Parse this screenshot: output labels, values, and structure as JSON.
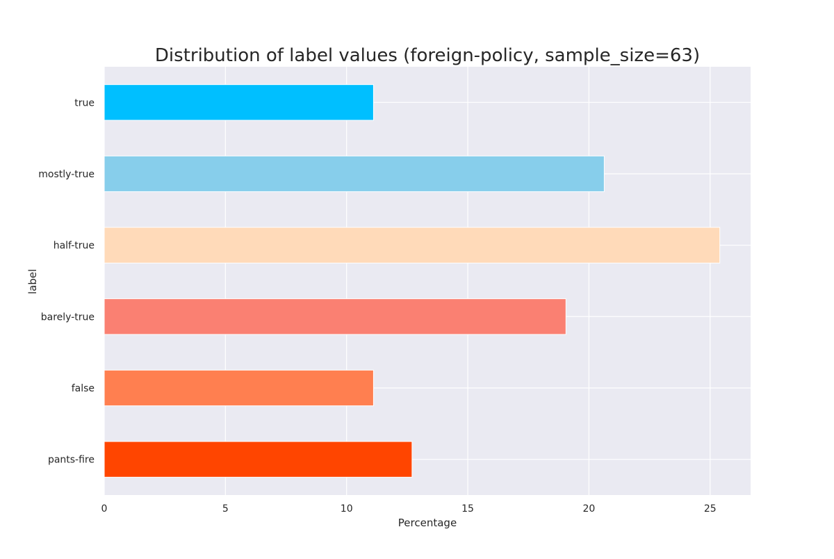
{
  "chart_data": {
    "type": "bar",
    "orientation": "horizontal",
    "title": "Distribution of label values (foreign-policy, sample_size=63)",
    "xlabel": "Percentage",
    "ylabel": "label",
    "xlim": [
      0,
      26.67
    ],
    "xticks": [
      0,
      5,
      10,
      15,
      20,
      25
    ],
    "grid": true,
    "background_color": "#EAEAF2",
    "grid_color": "#FFFFFF",
    "categories": [
      "true",
      "mostly-true",
      "half-true",
      "barely-true",
      "false",
      "pants-fire"
    ],
    "values": [
      11.11,
      20.63,
      25.4,
      19.05,
      11.11,
      12.7
    ],
    "colors": [
      "#00BFFF",
      "#87CEEB",
      "#FFDAB9",
      "#FA8072",
      "#FF7F50",
      "#FF4500"
    ]
  }
}
